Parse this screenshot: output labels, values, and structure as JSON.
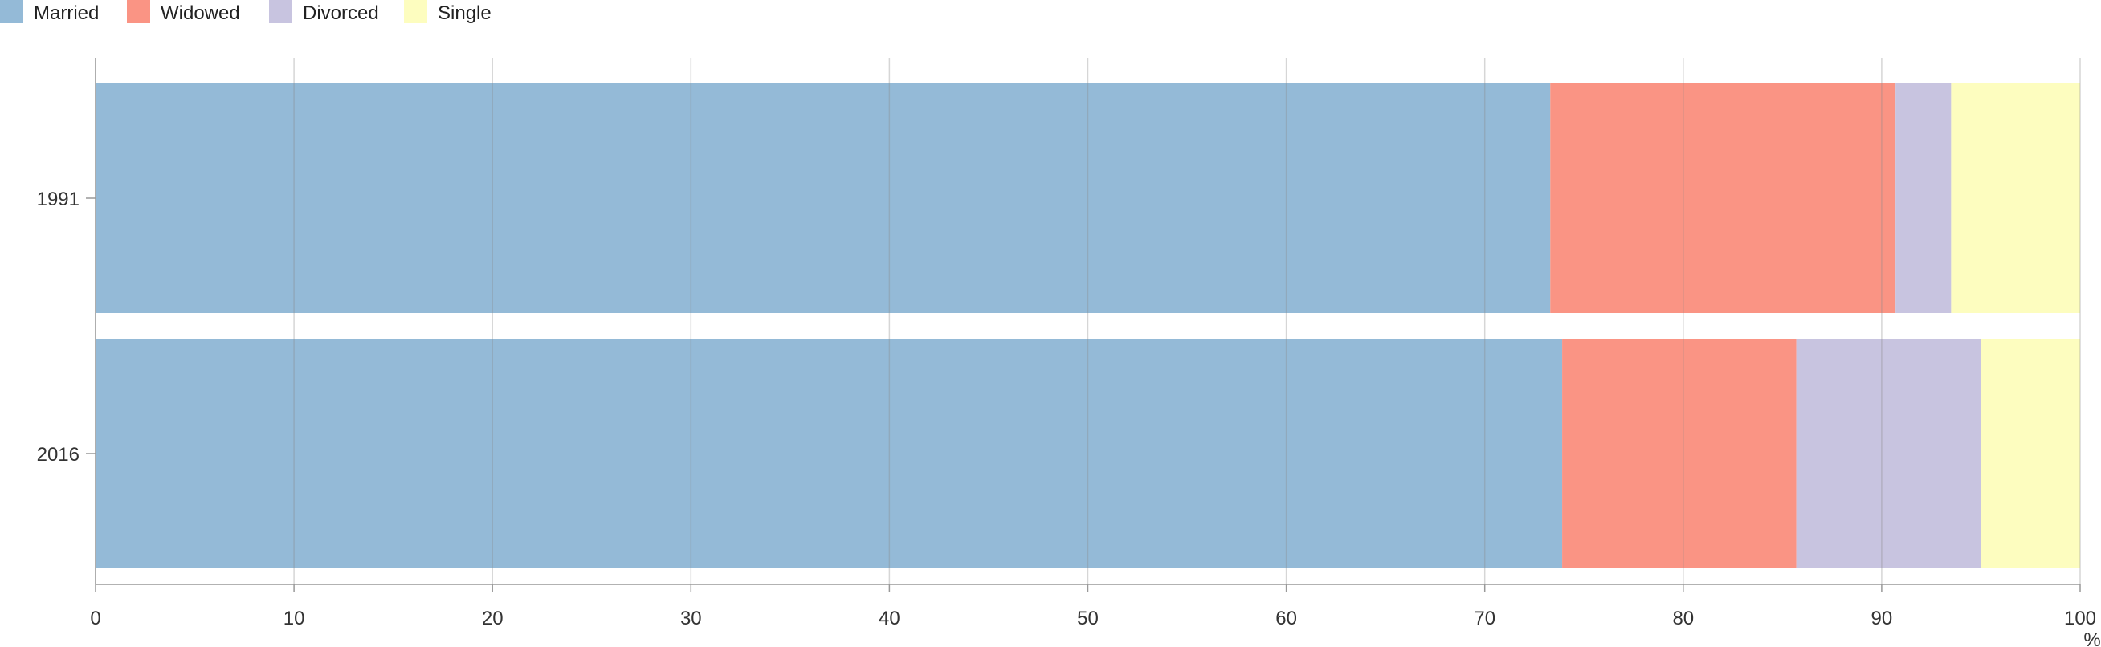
{
  "chart_data": {
    "type": "bar",
    "orientation": "horizontal",
    "stacked": true,
    "categories": [
      "1991",
      "2016"
    ],
    "series": [
      {
        "name": "Married",
        "color": "#94bad7",
        "values": [
          73.3,
          73.9
        ]
      },
      {
        "name": "Widowed",
        "color": "#fa9484",
        "values": [
          17.4,
          11.8
        ]
      },
      {
        "name": "Divorced",
        "color": "#c8c4e0",
        "values": [
          2.8,
          9.3
        ]
      },
      {
        "name": "Single",
        "color": "#fdfdbf",
        "values": [
          6.5,
          5.0
        ]
      }
    ],
    "xlim": [
      0,
      100
    ],
    "xticks": [
      0,
      10,
      20,
      30,
      40,
      50,
      60,
      70,
      80,
      90,
      100
    ],
    "x_unit": "%",
    "grid": true,
    "legend_position": "top-left"
  }
}
